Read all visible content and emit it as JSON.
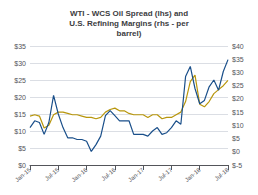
{
  "chart_data": {
    "type": "line",
    "title": "WTI - WCS Oil Spread (lhs) and\nU.S. Refining Margins (rhs - per\nbarrel)",
    "categories": [
      "Jan-15",
      null,
      null,
      null,
      null,
      null,
      "Jul-15",
      null,
      null,
      null,
      null,
      null,
      "Jan-16",
      null,
      null,
      null,
      null,
      null,
      "Jul-16",
      null,
      null,
      null,
      null,
      null,
      "Jan-17",
      null,
      null,
      null,
      null,
      null,
      "Jul-17",
      null,
      null,
      null,
      null,
      null,
      "Jan-18",
      null,
      null,
      null,
      null,
      null,
      "Jul-18"
    ],
    "series": [
      {
        "color": "#1a4f8a",
        "axis": "y",
        "values": [
          11.0,
          13.0,
          12.5,
          9.0,
          12.5,
          20.5,
          15.0,
          11.0,
          8.0,
          8.0,
          7.5,
          7.5,
          7.0,
          4.0,
          6.0,
          8.5,
          14.5,
          16.0,
          14.5,
          13.0,
          13.0,
          13.0,
          9.0,
          9.0,
          9.0,
          8.5,
          10.0,
          11.0,
          9.0,
          9.5,
          11.0,
          13.0,
          12.0,
          26.0,
          29.0,
          22.5,
          18.0,
          19.0,
          23.0,
          25.0,
          22.0,
          27.5,
          31.0
        ]
      },
      {
        "color": "#b8960c",
        "axis": "y2",
        "values": [
          13.5,
          14.0,
          13.5,
          9.0,
          10.0,
          14.0,
          15.0,
          15.0,
          14.5,
          14.0,
          14.0,
          13.5,
          13.0,
          13.0,
          12.5,
          13.0,
          15.0,
          16.0,
          16.5,
          15.5,
          15.5,
          14.5,
          14.0,
          14.0,
          14.0,
          13.0,
          14.0,
          14.0,
          12.5,
          13.0,
          13.0,
          14.0,
          15.0,
          19.0,
          26.5,
          29.0,
          18.0,
          17.0,
          19.0,
          22.0,
          23.5,
          25.0,
          27.0
        ]
      }
    ],
    "ylim": [
      0,
      35
    ],
    "yticks": [
      {
        "value": 0,
        "label": "$0"
      },
      {
        "value": 5,
        "label": "$5"
      },
      {
        "value": 10,
        "label": "$10"
      },
      {
        "value": 15,
        "label": "$15"
      },
      {
        "value": 20,
        "label": "$20"
      },
      {
        "value": 25,
        "label": "$25"
      },
      {
        "value": 30,
        "label": "$30"
      },
      {
        "value": 35,
        "label": "$35"
      }
    ],
    "y2lim": [
      -5,
      40
    ],
    "y2ticks": [
      {
        "value": -5,
        "label": "$-5"
      },
      {
        "value": 0,
        "label": "$0"
      },
      {
        "value": 5,
        "label": "$5"
      },
      {
        "value": 10,
        "label": "$10"
      },
      {
        "value": 15,
        "label": "$15"
      },
      {
        "value": 20,
        "label": "$20"
      },
      {
        "value": 25,
        "label": "$25"
      },
      {
        "value": 30,
        "label": "$30"
      },
      {
        "value": 35,
        "label": "$35"
      },
      {
        "value": 40,
        "label": "$40"
      }
    ],
    "grid": true
  }
}
